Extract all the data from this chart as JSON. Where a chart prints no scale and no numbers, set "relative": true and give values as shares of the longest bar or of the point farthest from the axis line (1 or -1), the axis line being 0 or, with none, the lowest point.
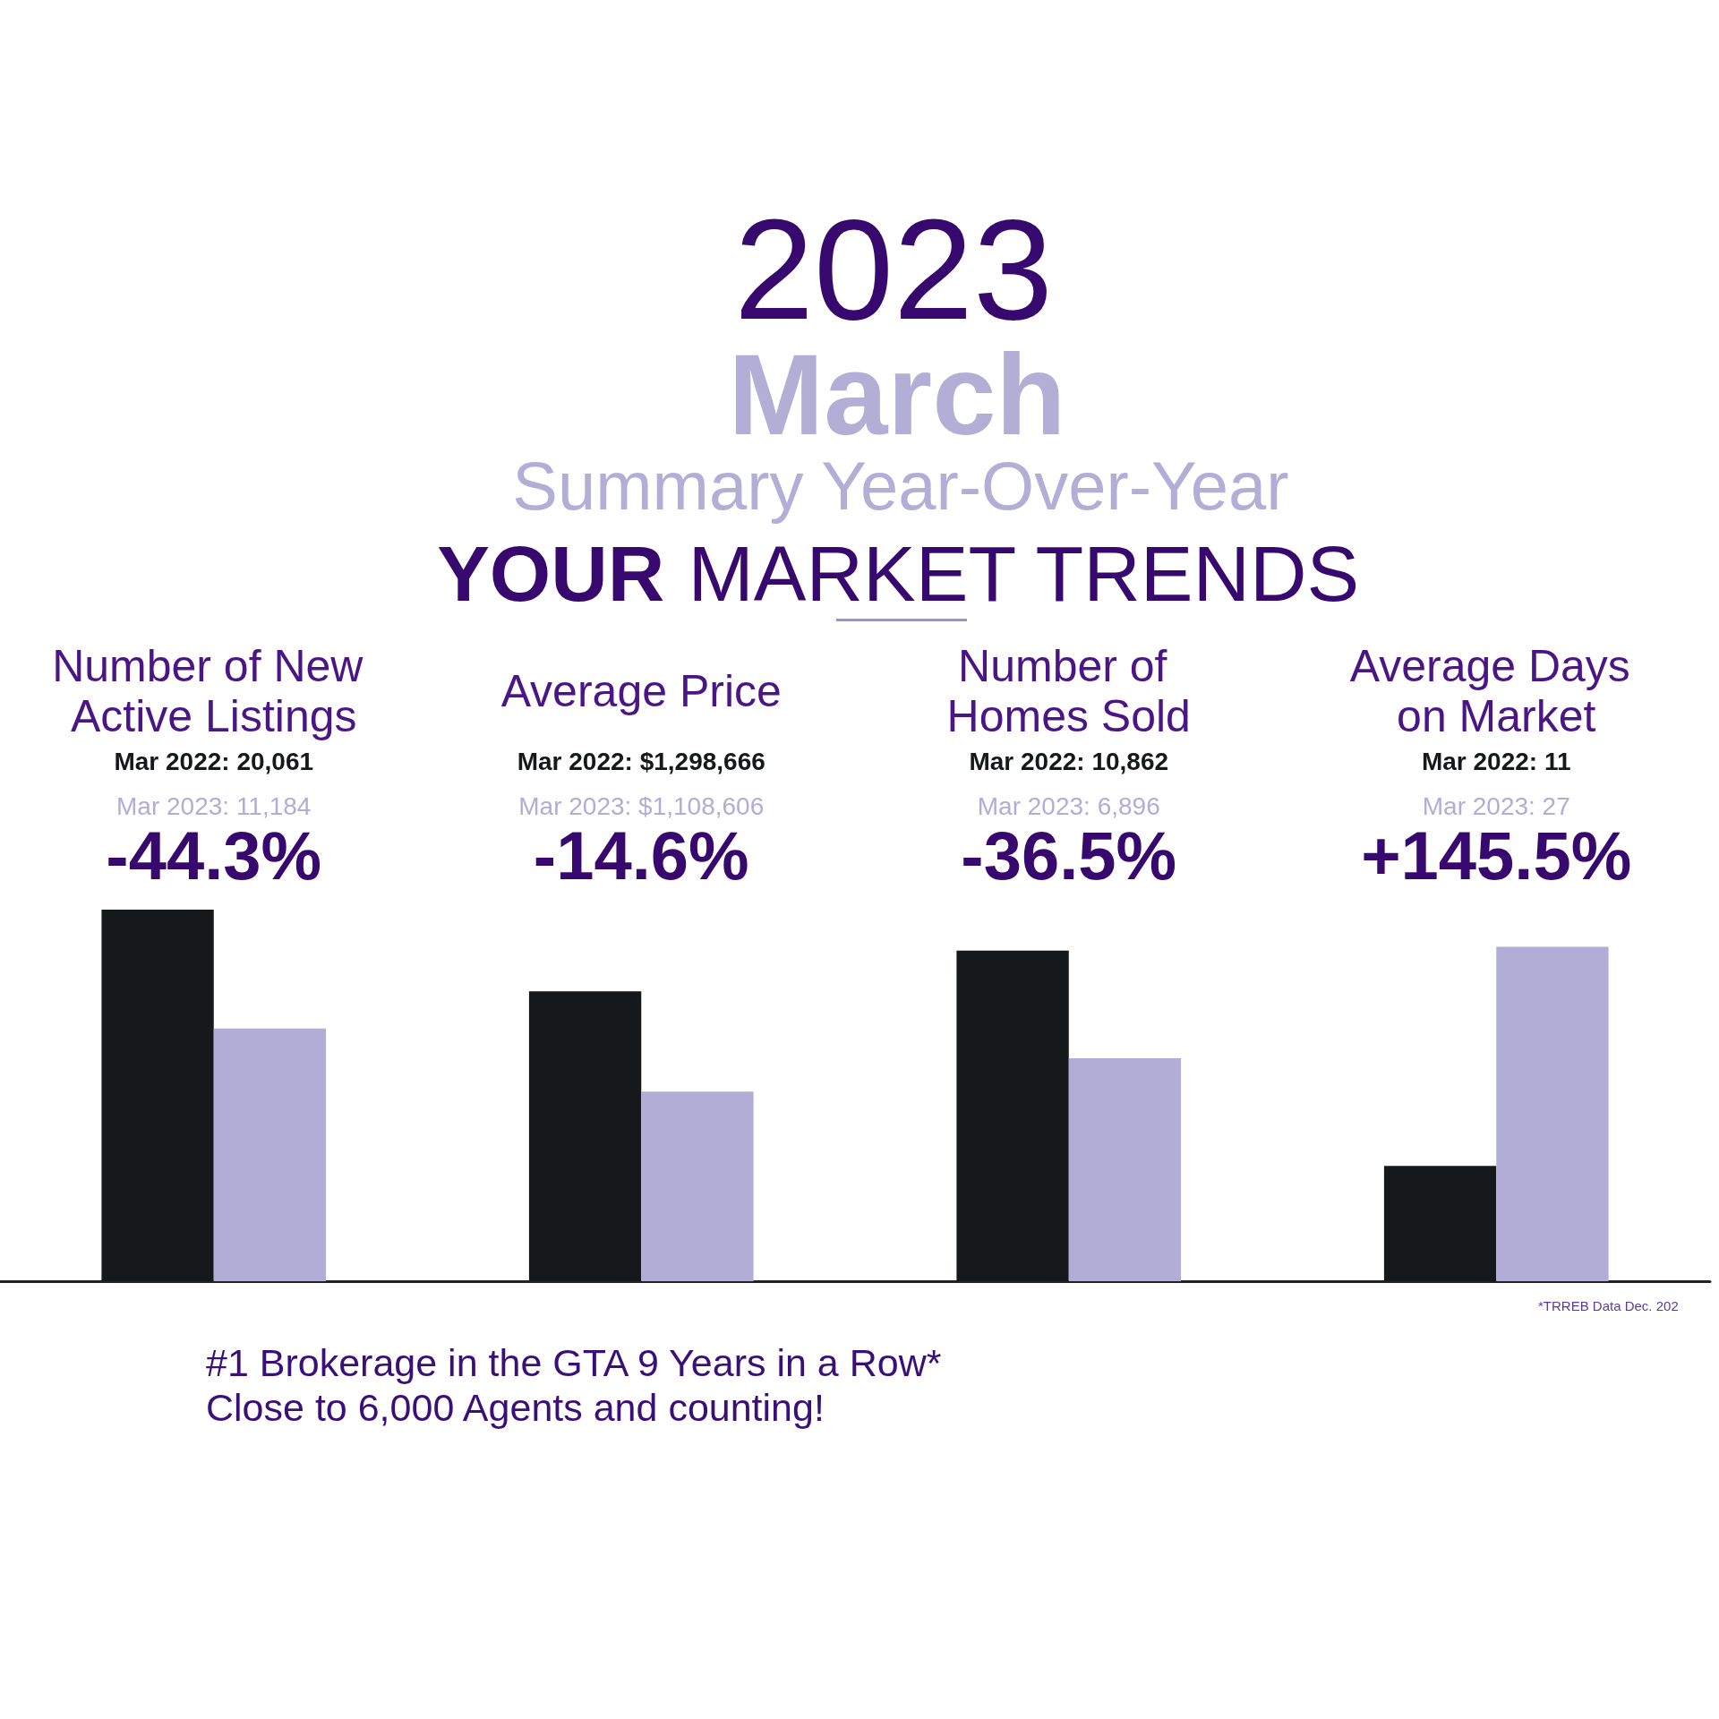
{
  "chart_data": {
    "type": "bar",
    "title": "2023",
    "subtitle": "March",
    "categories": [
      "Number of New Active Listings",
      "Average Price",
      "Number of Homes Sold",
      "Average Days on Market"
    ],
    "relative": true,
    "series": [
      {
        "color": "#15191b",
        "values": [
          1,
          0.78,
          0.89,
          0.31
        ]
      },
      {
        "color": "#b2add6",
        "values": [
          0.68,
          0.51,
          0.6,
          0.9
        ]
      }
    ],
    "annotations": [
      "Summary Year-Over-Year",
      "YOUR MARKET TRENDS",
      "Mar 2022: 20,061",
      "Mar 2023: 11,184",
      "-44.3%",
      "Mar 2022: $1,298,666",
      "Mar 2023: $1,108,606",
      "-14.6%",
      "Mar 2022: 10,862",
      "Mar 2023: 6,896",
      "-36.5%",
      "Mar 2022: 11",
      "Mar 2023: 27",
      "+145.5%",
      "#1 Brokerage in the GTA 9 Years in a Row*",
      "Close to 6,000 Agents and counting!",
      "*TRREB Data Dec. 202"
    ]
  }
}
